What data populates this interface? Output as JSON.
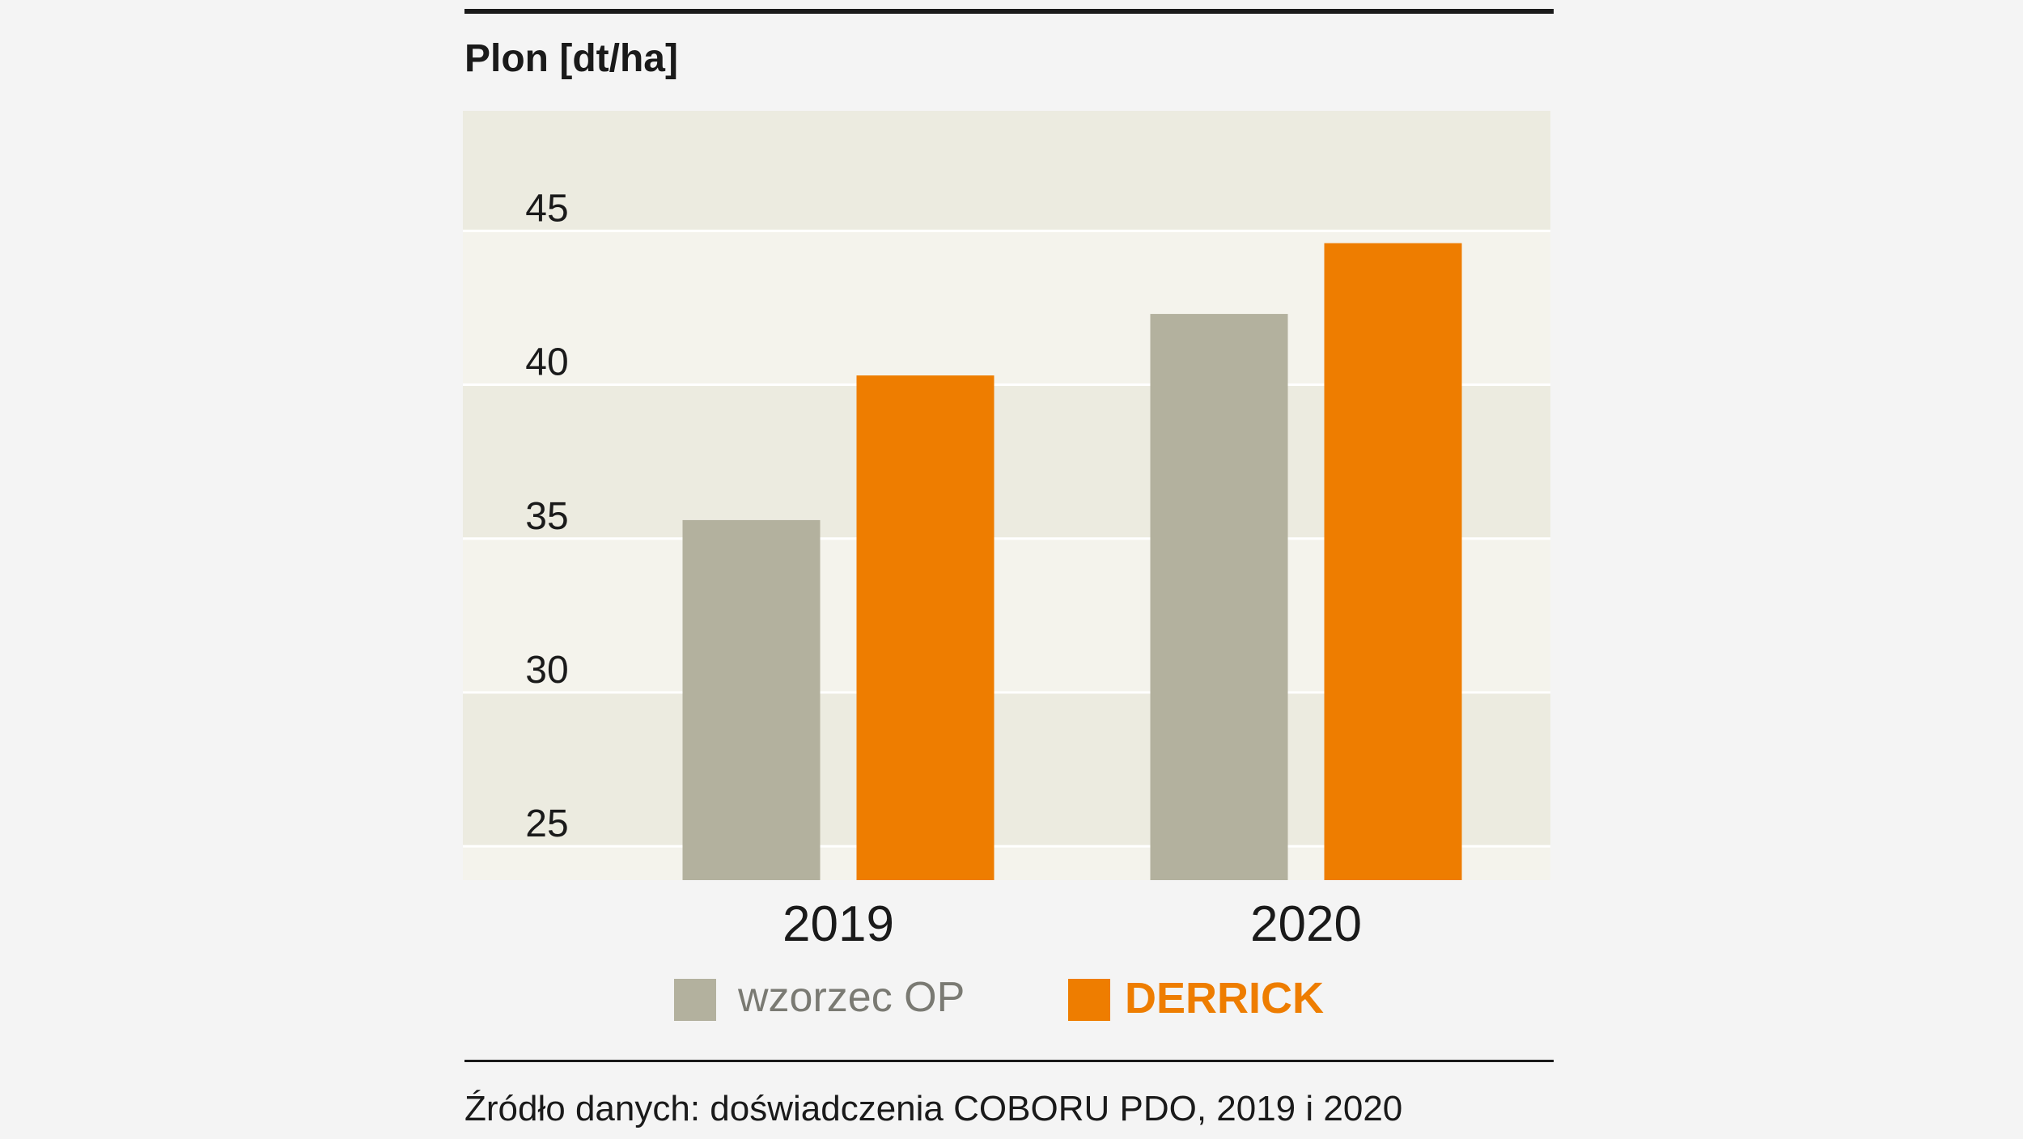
{
  "chart_data": {
    "type": "bar",
    "title": "Plon [dt/ha]",
    "categories": [
      "2019",
      "2020"
    ],
    "series": [
      {
        "name": "wzorzec OP",
        "values": [
          35.6,
          42.3
        ],
        "color": "#b3b19e"
      },
      {
        "name": "DERRICK",
        "values": [
          40.3,
          44.6
        ],
        "color": "#ee7d00"
      }
    ],
    "yticks": [
      25,
      30,
      35,
      40,
      45
    ],
    "ylim": [
      23.9,
      48.9
    ],
    "grid": true,
    "legend_position": "bottom",
    "source": "Źródło danych: doświadczenia COBORU PDO, 2019 i 2020"
  },
  "colors": {
    "background": "#f4f4f4",
    "band_dark": "#ecebe0",
    "band_light": "#f4f3ec",
    "rule": "#1a1a1a",
    "text": "#1a1a1a",
    "legend_grey_text": "#7a7a73",
    "accent": "#ee7d00"
  }
}
